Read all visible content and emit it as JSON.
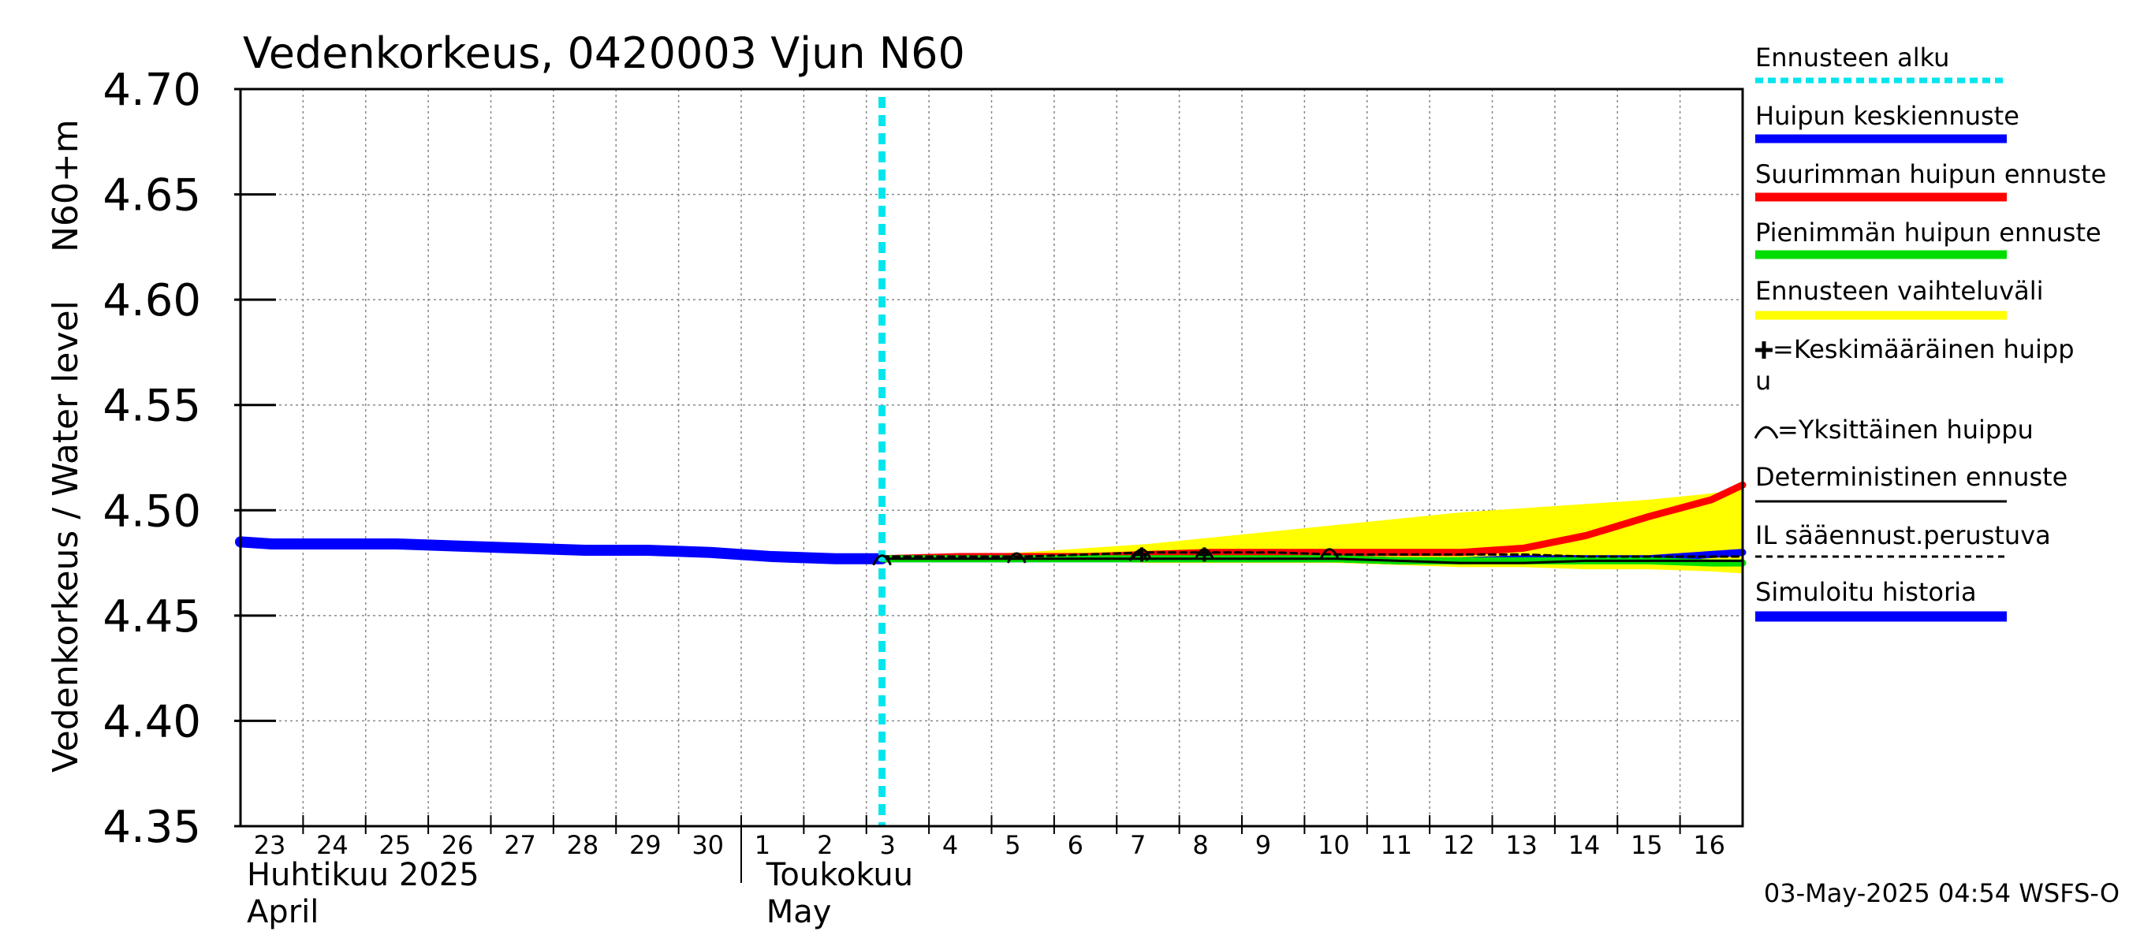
{
  "chart_data": {
    "type": "line",
    "title": "Vedenkorkeus, 0420003 Vjun N60",
    "ylabel": "Vedenkorkeus / Water level",
    "ylabel_unit": "N60+m",
    "ylim": [
      4.35,
      4.7
    ],
    "yticks": [
      "4.70",
      "4.65",
      "4.60",
      "4.55",
      "4.50",
      "4.45",
      "4.40",
      "4.35"
    ],
    "ytick_values": [
      4.7,
      4.65,
      4.6,
      4.55,
      4.5,
      4.45,
      4.4,
      4.35
    ],
    "xlim": [
      22.5,
      46.5
    ],
    "x_day_labels": [
      "23",
      "24",
      "25",
      "26",
      "27",
      "28",
      "29",
      "30",
      "1",
      "2",
      "3",
      "4",
      "5",
      "6",
      "7",
      "8",
      "9",
      "10",
      "11",
      "12",
      "13",
      "14",
      "15",
      "16"
    ],
    "x_day_values": [
      23,
      24,
      25,
      26,
      27,
      28,
      29,
      30,
      31,
      32,
      33,
      34,
      35,
      36,
      37,
      38,
      39,
      40,
      41,
      42,
      43,
      44,
      45,
      46
    ],
    "month_labels": [
      {
        "fi": "Huhtikuu  2025",
        "en": "April",
        "x": 22.6
      },
      {
        "fi": "Toukokuu",
        "en": "May",
        "x": 30.9
      }
    ],
    "month_divider_x": 30.5,
    "forecast_start_x": 32.75,
    "series": [
      {
        "name": "Simuloitu historia",
        "color": "#0000ff",
        "style": "thick",
        "x": [
          22.5,
          23,
          24,
          25,
          26,
          27,
          28,
          29,
          30,
          31,
          32,
          32.75
        ],
        "y": [
          4.485,
          4.484,
          4.484,
          4.484,
          4.483,
          4.482,
          4.481,
          4.481,
          4.48,
          4.478,
          4.477,
          4.477
        ]
      },
      {
        "name": "Huipun keskiennuste",
        "color": "#0000ff",
        "style": "medium",
        "x": [
          32.75,
          34,
          35,
          36,
          37,
          38,
          39,
          40,
          41,
          42,
          43,
          44,
          45,
          46,
          46.5
        ],
        "y": [
          4.477,
          4.477,
          4.477,
          4.477,
          4.477,
          4.477,
          4.477,
          4.477,
          4.476,
          4.476,
          4.477,
          4.477,
          4.477,
          4.479,
          4.48
        ]
      },
      {
        "name": "Suurimman huipun ennuste",
        "color": "#ff0000",
        "style": "medium",
        "x": [
          32.75,
          34,
          35,
          36,
          37,
          38,
          39,
          40,
          41,
          42,
          43,
          44,
          45,
          46,
          46.5
        ],
        "y": [
          4.477,
          4.478,
          4.478,
          4.478,
          4.479,
          4.48,
          4.48,
          4.48,
          4.48,
          4.48,
          4.482,
          4.488,
          4.497,
          4.505,
          4.512
        ]
      },
      {
        "name": "Pienimmän huipun ennuste",
        "color": "#00dd00",
        "style": "medium",
        "x": [
          32.75,
          34,
          36,
          38,
          40,
          41,
          42,
          43,
          44,
          45,
          46,
          46.5
        ],
        "y": [
          4.477,
          4.477,
          4.477,
          4.477,
          4.477,
          4.476,
          4.476,
          4.476,
          4.476,
          4.476,
          4.475,
          4.475
        ]
      },
      {
        "name": "Deterministinen ennuste",
        "color": "#000000",
        "style": "thin",
        "x": [
          32.75,
          34,
          36,
          38,
          40,
          41,
          42,
          43,
          44,
          45,
          46,
          46.5
        ],
        "y": [
          4.477,
          4.477,
          4.477,
          4.477,
          4.477,
          4.476,
          4.475,
          4.475,
          4.476,
          4.476,
          4.476,
          4.476
        ]
      },
      {
        "name": "IL sääennust.perustuva",
        "color": "#000000",
        "style": "dashed",
        "x": [
          32.75,
          34,
          35,
          36,
          37,
          38,
          39,
          40,
          41,
          42,
          43,
          44,
          45,
          46,
          46.5
        ],
        "y": [
          4.478,
          4.478,
          4.478,
          4.479,
          4.48,
          4.48,
          4.48,
          4.479,
          4.479,
          4.479,
          4.479,
          4.478,
          4.478,
          4.478,
          4.478
        ]
      }
    ],
    "range_band": {
      "name": "Ennusteen vaihteluväli",
      "color": "#ffff00",
      "x": [
        32.75,
        34,
        35,
        36,
        37,
        38,
        39,
        40,
        41,
        42,
        43,
        44,
        45,
        46,
        46.5
      ],
      "upper": [
        4.478,
        4.479,
        4.48,
        4.482,
        4.484,
        4.487,
        4.49,
        4.493,
        4.496,
        4.499,
        4.501,
        4.503,
        4.505,
        4.508,
        4.51
      ],
      "lower": [
        4.476,
        4.476,
        4.476,
        4.476,
        4.475,
        4.475,
        4.475,
        4.475,
        4.474,
        4.473,
        4.473,
        4.472,
        4.472,
        4.471,
        4.47
      ]
    },
    "single_peaks": [
      {
        "x": 32.75,
        "y": 4.477
      },
      {
        "x": 34.9,
        "y": 4.478
      },
      {
        "x": 36.85,
        "y": 4.479
      },
      {
        "x": 36.9,
        "y": 4.48
      },
      {
        "x": 37.9,
        "y": 4.48
      },
      {
        "x": 39.9,
        "y": 4.48
      }
    ],
    "mean_peaks": [
      {
        "x": 36.9,
        "y": 4.479
      },
      {
        "x": 37.9,
        "y": 4.479
      }
    ],
    "grid": true
  },
  "legend": {
    "items": [
      {
        "label": "Ennusteen alku",
        "color": "#00e5ee",
        "style": "dotted"
      },
      {
        "label": "Huipun keskiennuste",
        "color": "#0000ff",
        "style": "line"
      },
      {
        "label": "Suurimman huipun ennuste",
        "color": "#ff0000",
        "style": "line"
      },
      {
        "label": "Pienimmän huipun ennuste",
        "color": "#00dd00",
        "style": "line"
      },
      {
        "label": "Ennusteen vaihteluväli",
        "color": "#ffff00",
        "style": "line"
      },
      {
        "label": "=Keskimääräinen huipp",
        "label2": "u",
        "style": "plus"
      },
      {
        "label": "=Yksittäinen huippu",
        "style": "arc"
      },
      {
        "label": "Deterministinen ennuste",
        "color": "#000000",
        "style": "thin"
      },
      {
        "label": "IL sääennust.perustuva",
        "color": "#000000",
        "style": "dashed"
      },
      {
        "label": "Simuloitu historia",
        "color": "#0000ff",
        "style": "thick"
      }
    ]
  },
  "timestamp": "03-May-2025 04:54 WSFS-O"
}
